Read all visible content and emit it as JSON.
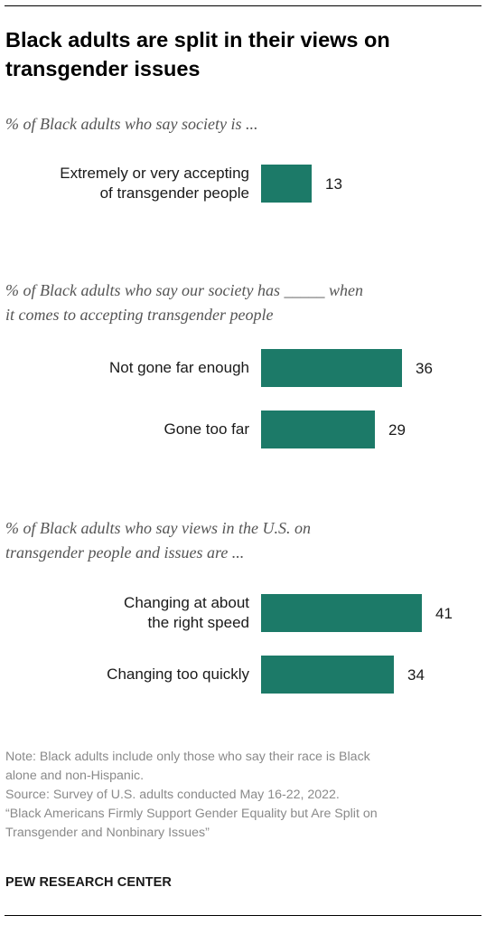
{
  "title": "Black adults are split in their views on transgender issues",
  "notes": {
    "note_line1": "Note: Black adults include only those who say their race is Black",
    "note_line2": "alone and non-Hispanic.",
    "source_line1": "Source: Survey of U.S. adults conducted May 16-22, 2022.",
    "source_line2": "“Black Americans Firmly Support Gender Equality but Are Split on",
    "source_line3": "Transgender and Nonbinary Issues”"
  },
  "logo": "PEW RESEARCH CENTER",
  "colors": {
    "bar": "#1c7a68"
  },
  "chart_data": [
    {
      "type": "bar",
      "subtitle_lines": [
        "% of Black adults who say society is ..."
      ],
      "categories": [
        [
          "Extremely or very accepting",
          "of transgender people"
        ]
      ],
      "values": [
        13
      ]
    },
    {
      "type": "bar",
      "subtitle_lines": [
        "% of Black adults who say our society has _____ when",
        "it comes to accepting transgender people"
      ],
      "categories": [
        [
          "Not gone far enough"
        ],
        [
          "Gone too far"
        ]
      ],
      "values": [
        36,
        29
      ]
    },
    {
      "type": "bar",
      "subtitle_lines": [
        "% of Black adults who say views in the U.S. on",
        "transgender people and issues are ..."
      ],
      "categories": [
        [
          "Changing at about",
          "the right speed"
        ],
        [
          "Changing too quickly"
        ]
      ],
      "values": [
        41,
        34
      ]
    }
  ]
}
